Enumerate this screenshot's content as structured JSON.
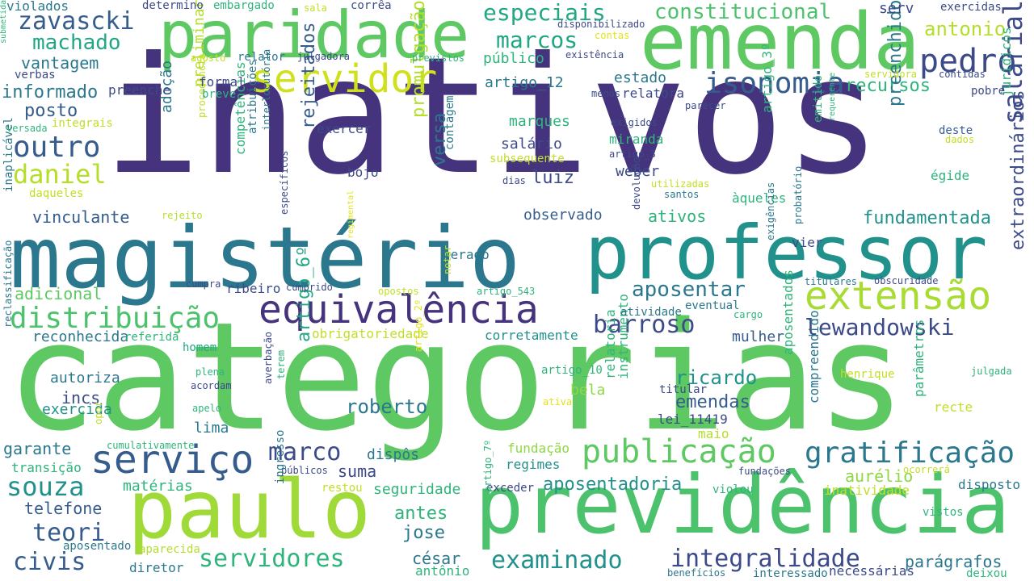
{
  "word_cloud": {
    "palette": {
      "dark_purple": "#46337e",
      "indigo": "#3d4a89",
      "blue": "#365c8d",
      "teal_blue": "#2b788e",
      "teal": "#21918c",
      "teal_green": "#22a785",
      "green": "#2fb47c",
      "light_green": "#5ec962",
      "lime": "#8fd744",
      "yellow_green": "#c2df23",
      "yellow": "#e2e418"
    },
    "words": [
      {
        "text": "inativos",
        "color": "#46337e"
      },
      {
        "text": "categorias",
        "color": "#5ec962"
      },
      {
        "text": "magistério",
        "color": "#2b788e"
      },
      {
        "text": "professor",
        "color": "#21918c"
      },
      {
        "text": "emenda",
        "color": "#5ec962"
      },
      {
        "text": "paridade",
        "color": "#5ec962"
      },
      {
        "text": "paulo",
        "color": "#a0da39"
      },
      {
        "text": "previdência",
        "color": "#4cc26c"
      },
      {
        "text": "servidor",
        "color": "#d0e11c"
      },
      {
        "text": "equivalência",
        "color": "#46337e"
      },
      {
        "text": "extensão",
        "color": "#a8db34"
      },
      {
        "text": "serviço",
        "color": "#365c8d"
      },
      {
        "text": "publicação",
        "color": "#5ec962"
      },
      {
        "text": "gratificação",
        "color": "#2b788e"
      },
      {
        "text": "distribuição",
        "color": "#4cc26c"
      },
      {
        "text": "isonomia",
        "color": "#365c8d"
      },
      {
        "text": "pedro",
        "color": "#3d4a89"
      },
      {
        "text": "outro",
        "color": "#365c8d"
      },
      {
        "text": "daniel",
        "color": "#b5de2b"
      },
      {
        "text": "zavascki",
        "color": "#365c8d"
      },
      {
        "text": "souza",
        "color": "#21918c"
      },
      {
        "text": "marco",
        "color": "#3d4a89"
      },
      {
        "text": "barroso",
        "color": "#3d4a89"
      },
      {
        "text": "lewandowski",
        "color": "#3d4a89"
      },
      {
        "text": "especiais",
        "color": "#22a785"
      },
      {
        "text": "marcos",
        "color": "#22a785"
      },
      {
        "text": "salarial",
        "color": "#3d4a89"
      },
      {
        "text": "constitucional",
        "color": "#4cc26c"
      },
      {
        "text": "integralidade",
        "color": "#3d4a89"
      },
      {
        "text": "examinado",
        "color": "#21918c"
      },
      {
        "text": "servidores",
        "color": "#2fb47c"
      },
      {
        "text": "teori",
        "color": "#365c8d"
      },
      {
        "text": "machado",
        "color": "#22a785"
      },
      {
        "text": "aposentar",
        "color": "#2b788e"
      },
      {
        "text": "extraordinários",
        "color": "#3d4a89"
      },
      {
        "text": "antonio",
        "color": "#b5de2b"
      },
      {
        "text": "civis",
        "color": "#365c8d"
      },
      {
        "text": "recursos",
        "color": "#2fb47c"
      },
      {
        "text": "preenchido",
        "color": "#2b788e"
      },
      {
        "text": "fundamentada",
        "color": "#21918c"
      },
      {
        "text": "aposentadoria",
        "color": "#21918c"
      },
      {
        "text": "ricardo",
        "color": "#21918c"
      },
      {
        "text": "roberto",
        "color": "#2b788e"
      },
      {
        "text": "emendas",
        "color": "#365c8d"
      },
      {
        "text": "promulgação",
        "color": "#b5de2b"
      },
      {
        "text": "rejeitados",
        "color": "#365c8d"
      },
      {
        "text": "artigo_6º",
        "color": "#22a785"
      },
      {
        "text": "versa",
        "color": "#2b788e"
      },
      {
        "text": "posto",
        "color": "#365c8d"
      },
      {
        "text": "informado",
        "color": "#2b788e"
      },
      {
        "text": "vantagem",
        "color": "#2b788e"
      },
      {
        "text": "vinculante",
        "color": "#365c8d"
      },
      {
        "text": "adicional",
        "color": "#5ec962"
      },
      {
        "text": "reconhecida",
        "color": "#2b788e"
      },
      {
        "text": "autoriza",
        "color": "#2b788e"
      },
      {
        "text": "incs",
        "color": "#3d4a89"
      },
      {
        "text": "exercida",
        "color": "#21918c"
      },
      {
        "text": "garante",
        "color": "#2b788e"
      },
      {
        "text": "telefone",
        "color": "#365c8d"
      },
      {
        "text": "jose",
        "color": "#2b788e"
      },
      {
        "text": "antes",
        "color": "#2fb47c"
      },
      {
        "text": "césar",
        "color": "#2b788e"
      },
      {
        "text": "seguridade",
        "color": "#2fb47c"
      },
      {
        "text": "suma",
        "color": "#3d4a89"
      },
      {
        "text": "dispôs",
        "color": "#2b788e"
      },
      {
        "text": "regimes",
        "color": "#21918c"
      },
      {
        "text": "fundação",
        "color": "#8fd744"
      },
      {
        "text": "bela",
        "color": "#8fd744"
      },
      {
        "text": "lima",
        "color": "#2b788e"
      },
      {
        "text": "maio",
        "color": "#b5de2b"
      },
      {
        "text": "lei_11419",
        "color": "#3d4a89"
      },
      {
        "text": "titular",
        "color": "#3d4a89"
      },
      {
        "text": "aurélio",
        "color": "#8fd744"
      },
      {
        "text": "parágrafos",
        "color": "#2b788e"
      },
      {
        "text": "inatividade",
        "color": "#c2df23"
      },
      {
        "text": "disposto",
        "color": "#2b788e"
      },
      {
        "text": "compreendido",
        "color": "#2b788e"
      },
      {
        "text": "aposentados",
        "color": "#2fb47c"
      },
      {
        "text": "relatoria",
        "color": "#2fb47c"
      },
      {
        "text": "instrumento",
        "color": "#2fb47c"
      },
      {
        "text": "parâmetros",
        "color": "#2fb47c"
      },
      {
        "text": "recte",
        "color": "#c2df23"
      },
      {
        "text": "julgada",
        "color": "#2fb47c"
      },
      {
        "text": "henrique",
        "color": "#c2df23"
      },
      {
        "text": "mulher",
        "color": "#365c8d"
      },
      {
        "text": "cargo",
        "color": "#2fb47c"
      },
      {
        "text": "atividade",
        "color": "#2b788e"
      },
      {
        "text": "eventual",
        "color": "#2b788e"
      },
      {
        "text": "obrigatoriedade",
        "color": "#c2df23"
      },
      {
        "text": "corretamente",
        "color": "#21918c"
      },
      {
        "text": "referida",
        "color": "#2fb47c"
      },
      {
        "text": "homem",
        "color": "#22a785"
      },
      {
        "text": "plena",
        "color": "#2fb47c"
      },
      {
        "text": "acordam",
        "color": "#3d4a89"
      },
      {
        "text": "averbação",
        "color": "#3d4a89"
      },
      {
        "text": "terem",
        "color": "#2fb47c"
      },
      {
        "text": "apelo",
        "color": "#2fb47c"
      },
      {
        "text": "artigo_2º",
        "color": "#e2e418"
      },
      {
        "text": "artigo_10",
        "color": "#2fb47c"
      },
      {
        "text": "ativa",
        "color": "#e2e418"
      },
      {
        "text": "cumulativamente",
        "color": "#2fb47c"
      },
      {
        "text": "opor",
        "color": "#c2df23"
      },
      {
        "text": "matérias",
        "color": "#2fb47c"
      },
      {
        "text": "transição",
        "color": "#2fb47c"
      },
      {
        "text": "aposentado",
        "color": "#2b788e"
      },
      {
        "text": "aparecida",
        "color": "#b5de2b"
      },
      {
        "text": "diretor",
        "color": "#2b788e"
      },
      {
        "text": "antônio",
        "color": "#2fb47c"
      },
      {
        "text": "benefícios",
        "color": "#2b788e"
      },
      {
        "text": "interessado",
        "color": "#2b788e"
      },
      {
        "text": "necessárias",
        "color": "#3d4a89"
      },
      {
        "text": "deixou",
        "color": "#2fb47c"
      },
      {
        "text": "vistos",
        "color": "#2fb47c"
      },
      {
        "text": "violou",
        "color": "#2fb47c"
      },
      {
        "text": "exceder",
        "color": "#3d4a89"
      },
      {
        "text": "restou",
        "color": "#c2df23"
      },
      {
        "text": "públicos",
        "color": "#3d4a89"
      },
      {
        "text": "ingresso",
        "color": "#2b788e"
      },
      {
        "text": "artigo_7º",
        "color": "#2fb47c"
      },
      {
        "text": "fundações",
        "color": "#3d4a89"
      },
      {
        "text": "ocorrerá",
        "color": "#c2df23"
      },
      {
        "text": "gerado",
        "color": "#2b788e"
      },
      {
        "text": "opostos",
        "color": "#c2df23"
      },
      {
        "text": "notar",
        "color": "#c2df23"
      },
      {
        "text": "artigo_543",
        "color": "#2fb47c"
      },
      {
        "text": "ribeiro",
        "color": "#3d4a89"
      },
      {
        "text": "cumprido",
        "color": "#3d4a89"
      },
      {
        "text": "cumpra",
        "color": "#3d4a89"
      },
      {
        "text": "regimental",
        "color": "#e2e418"
      },
      {
        "text": "inaplicável",
        "color": "#2b788e"
      },
      {
        "text": "específicos",
        "color": "#3d4a89"
      },
      {
        "text": "reclassificação",
        "color": "#2b788e"
      },
      {
        "text": "rejeito",
        "color": "#b5de2b"
      },
      {
        "text": "daqueles",
        "color": "#c2df23"
      },
      {
        "text": "competências",
        "color": "#2fb47c"
      },
      {
        "text": "atribuições",
        "color": "#2b788e"
      },
      {
        "text": "interlocutória",
        "color": "#2b788e"
      },
      {
        "text": "preliminar",
        "color": "#b5de2b"
      },
      {
        "text": "adoção",
        "color": "#2b788e"
      },
      {
        "text": "procedência",
        "color": "#c2df23"
      },
      {
        "text": "contagem",
        "color": "#2b788e"
      },
      {
        "text": "observado",
        "color": "#365c8d"
      },
      {
        "text": "ativos",
        "color": "#2fb47c"
      },
      {
        "text": "àqueles",
        "color": "#2fb47c"
      },
      {
        "text": "utilizadas",
        "color": "#c2df23"
      },
      {
        "text": "santos",
        "color": "#2b788e"
      },
      {
        "text": "devolução",
        "color": "#3d4a89"
      },
      {
        "text": "probatório",
        "color": "#2b788e"
      },
      {
        "text": "exigências",
        "color": "#2b788e"
      },
      {
        "text": "titulares",
        "color": "#2b788e"
      },
      {
        "text": "obscuridade",
        "color": "#3d4a89"
      },
      {
        "text": "vier",
        "color": "#3d4a89"
      },
      {
        "text": "egide_label",
        "color": "#2fb47c"
      },
      {
        "text": "deste",
        "color": "#365c8d"
      },
      {
        "text": "dados",
        "color": "#c2df23"
      },
      {
        "text": "jurídicos",
        "color": "#2fb47c"
      },
      {
        "text": "pobre",
        "color": "#3d4a89"
      },
      {
        "text": "contidas",
        "color": "#3d4a89"
      },
      {
        "text": "servidora",
        "color": "#c2df23"
      },
      {
        "text": "requerente",
        "color": "#2fb47c"
      },
      {
        "text": "emitido",
        "color": "#2fb47c"
      },
      {
        "text": "artigo_3º",
        "color": "#2fb47c"
      },
      {
        "text": "parecer",
        "color": "#3d4a89"
      },
      {
        "text": "relatora",
        "color": "#3d4a89"
      },
      {
        "text": "menos",
        "color": "#3d4a89"
      },
      {
        "text": "breve",
        "color": "#2fb47c"
      },
      {
        "text": "formal",
        "color": "#3d4a89"
      },
      {
        "text": "preenche",
        "color": "#3d4a89"
      },
      {
        "text": "integrais",
        "color": "#c2df23"
      },
      {
        "text": "versada",
        "color": "#2fb47c"
      },
      {
        "text": "verbas",
        "color": "#3d4a89"
      },
      {
        "text": "submetida",
        "color": "#2fb47c"
      },
      {
        "text": "violados",
        "color": "#2b788e"
      },
      {
        "text": "determino",
        "color": "#3d4a89"
      },
      {
        "text": "embargado",
        "color": "#2fb47c"
      },
      {
        "text": "sala",
        "color": "#c2df23"
      },
      {
        "text": "corrêa",
        "color": "#3d4a89"
      },
      {
        "text": "disponibilizado",
        "color": "#3d4a89"
      },
      {
        "text": "contas",
        "color": "#e2e418"
      },
      {
        "text": "serv",
        "color": "#3d4a89"
      },
      {
        "text": "exercidas",
        "color": "#3d4a89"
      },
      {
        "text": "agosto",
        "color": "#c2df23"
      },
      {
        "text": "relator",
        "color": "#2b788e"
      },
      {
        "text": "julgadora",
        "color": "#3d4a89"
      },
      {
        "text": "previstos",
        "color": "#2fb47c"
      },
      {
        "text": "existência",
        "color": "#3d4a89"
      },
      {
        "text": "público",
        "color": "#2fb47c"
      },
      {
        "text": "artigo_12",
        "color": "#2b788e"
      },
      {
        "text": "estado",
        "color": "#2b788e"
      },
      {
        "text": "marques",
        "color": "#2fb47c"
      },
      {
        "text": "salário",
        "color": "#3d4a89"
      },
      {
        "text": "miranda",
        "color": "#2fb47c"
      },
      {
        "text": "exigidos",
        "color": "#3d4a89"
      },
      {
        "text": "artigo_3",
        "color": "#3d4a89"
      },
      {
        "text": "subsequente",
        "color": "#c2df23"
      },
      {
        "text": "weber",
        "color": "#3d4a89"
      },
      {
        "text": "luiz",
        "color": "#3d4a89"
      },
      {
        "text": "bojo",
        "color": "#3d4a89"
      },
      {
        "text": "dias",
        "color": "#3d4a89"
      },
      {
        "text": "exercer",
        "color": "#3d4a89"
      }
    ]
  }
}
